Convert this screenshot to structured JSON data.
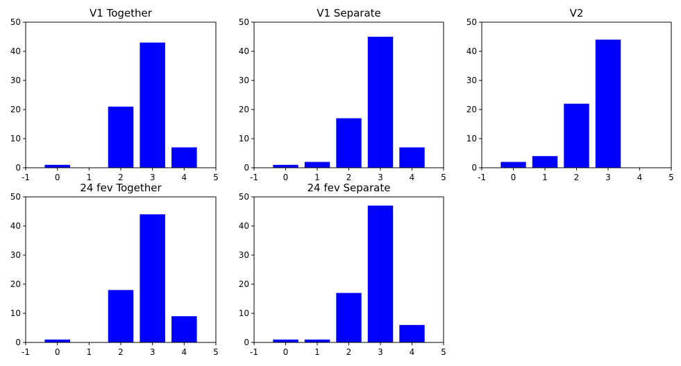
{
  "chart_data": [
    {
      "type": "bar",
      "title": "V1 Together",
      "x": [
        0,
        1,
        2,
        3,
        4
      ],
      "values": [
        1,
        0,
        21,
        43,
        7
      ],
      "xlim": [
        -1,
        5
      ],
      "ylim": [
        0,
        50
      ],
      "xticks": [
        "-1",
        "0",
        "1",
        "2",
        "3",
        "4",
        "5"
      ],
      "yticks": [
        "0",
        "10",
        "20",
        "30",
        "40",
        "50"
      ],
      "color": "#0000ff",
      "grid": false
    },
    {
      "type": "bar",
      "title": "V1 Separate",
      "x": [
        0,
        1,
        2,
        3,
        4
      ],
      "values": [
        1,
        2,
        17,
        45,
        7
      ],
      "xlim": [
        -1,
        5
      ],
      "ylim": [
        0,
        50
      ],
      "xticks": [
        "-1",
        "0",
        "1",
        "2",
        "3",
        "4",
        "5"
      ],
      "yticks": [
        "0",
        "10",
        "20",
        "30",
        "40",
        "50"
      ],
      "color": "#0000ff",
      "grid": false
    },
    {
      "type": "bar",
      "title": "V2",
      "x": [
        0,
        1,
        2,
        3,
        4
      ],
      "values": [
        2,
        4,
        22,
        44,
        0
      ],
      "xlim": [
        -1,
        5
      ],
      "ylim": [
        0,
        50
      ],
      "xticks": [
        "-1",
        "0",
        "1",
        "2",
        "3",
        "4",
        "5"
      ],
      "yticks": [
        "0",
        "10",
        "20",
        "30",
        "40",
        "50"
      ],
      "color": "#0000ff",
      "grid": false
    },
    {
      "type": "bar",
      "title": "24 fev Together",
      "x": [
        0,
        1,
        2,
        3,
        4
      ],
      "values": [
        1,
        0,
        18,
        44,
        9
      ],
      "xlim": [
        -1,
        5
      ],
      "ylim": [
        0,
        50
      ],
      "xticks": [
        "-1",
        "0",
        "1",
        "2",
        "3",
        "4",
        "5"
      ],
      "yticks": [
        "0",
        "10",
        "20",
        "30",
        "40",
        "50"
      ],
      "color": "#0000ff",
      "grid": false
    },
    {
      "type": "bar",
      "title": "24 fev Separate",
      "x": [
        0,
        1,
        2,
        3,
        4
      ],
      "values": [
        1,
        1,
        17,
        47,
        6
      ],
      "xlim": [
        -1,
        5
      ],
      "ylim": [
        0,
        50
      ],
      "xticks": [
        "-1",
        "0",
        "1",
        "2",
        "3",
        "4",
        "5"
      ],
      "yticks": [
        "0",
        "10",
        "20",
        "30",
        "40",
        "50"
      ],
      "color": "#0000ff",
      "grid": false
    }
  ]
}
